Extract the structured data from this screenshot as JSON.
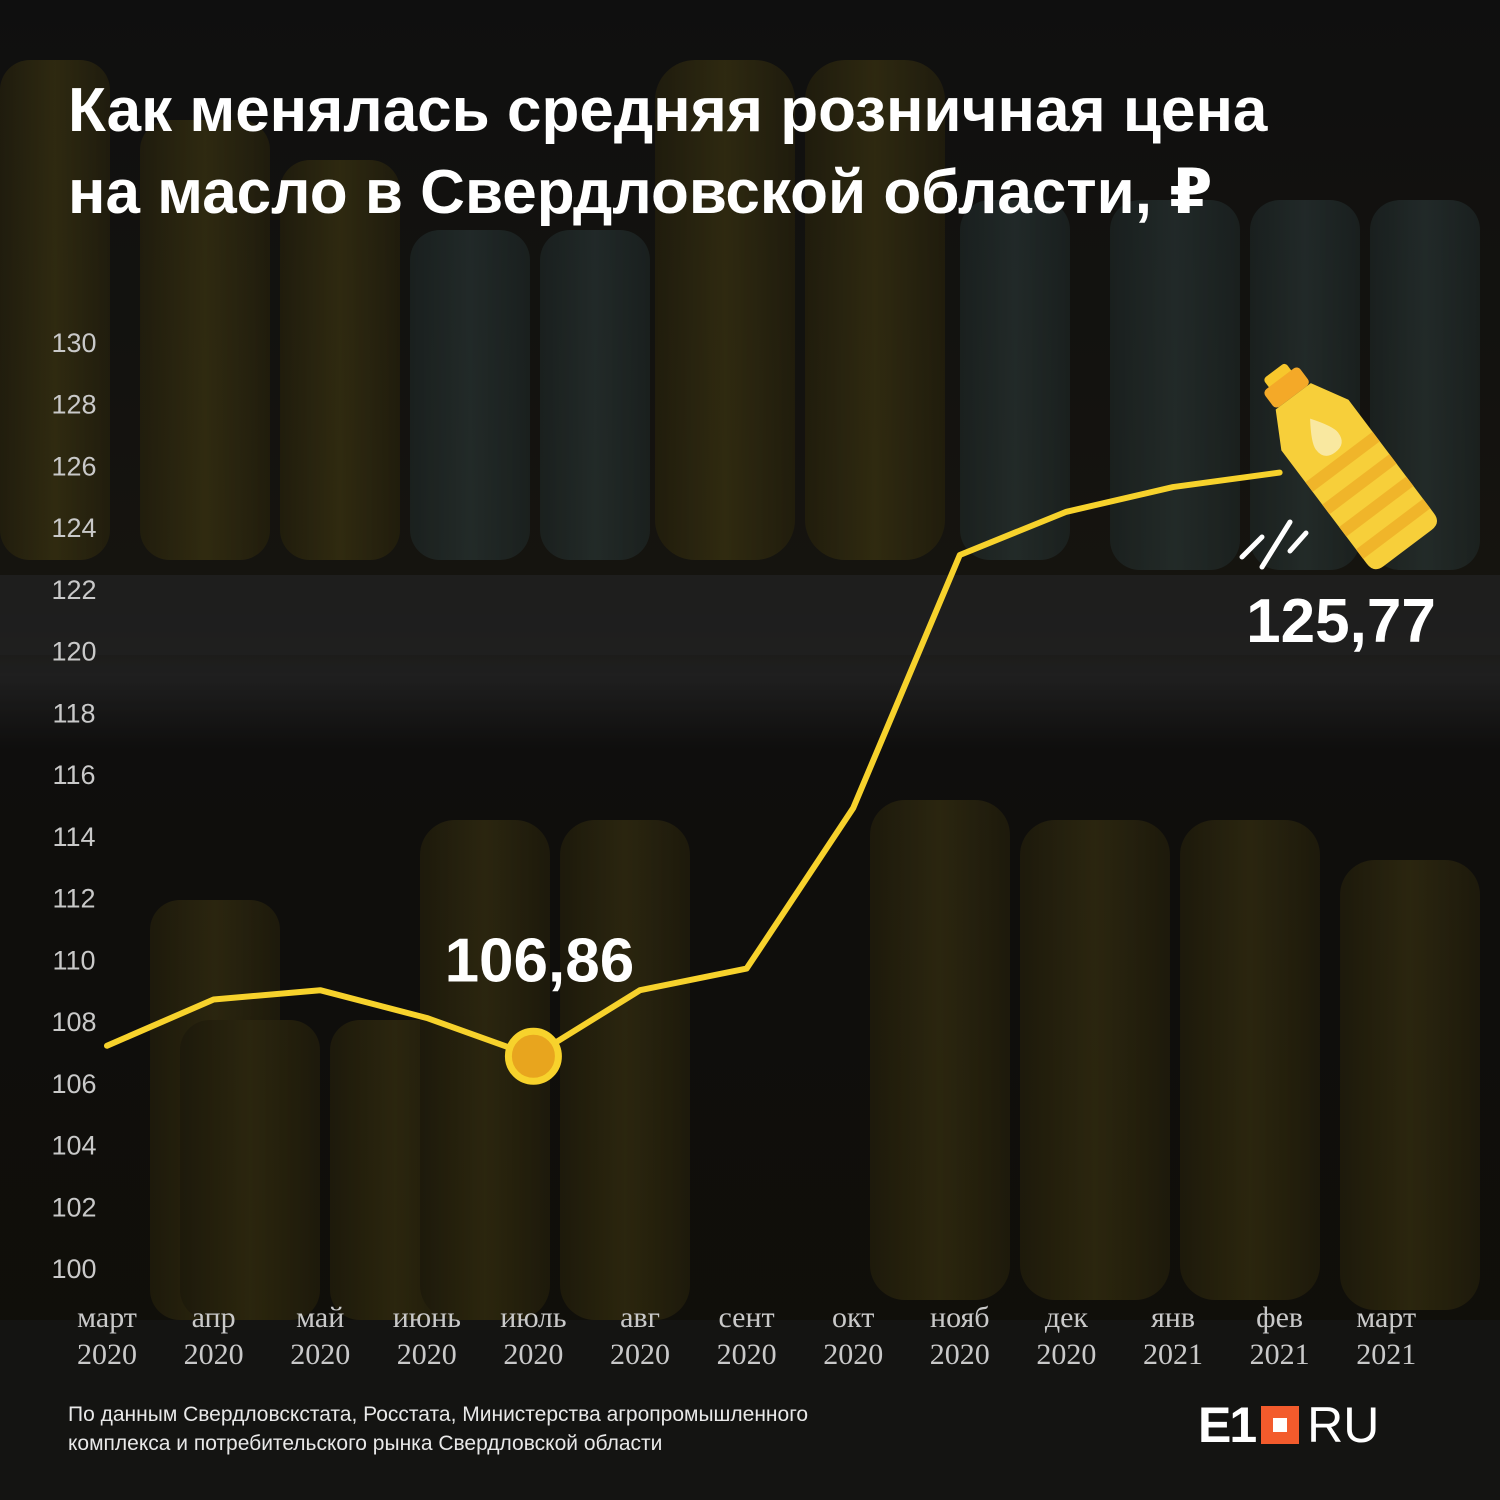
{
  "title_lines": [
    "Как менялась средняя розничная цена",
    "на масло в Свердловской области, ₽"
  ],
  "chart_data": {
    "type": "line",
    "ylim": [
      100,
      130
    ],
    "yticks": [
      100,
      102,
      104,
      106,
      108,
      110,
      112,
      114,
      116,
      118,
      120,
      122,
      124,
      126,
      128,
      130
    ],
    "categories": [
      [
        "март",
        "2020"
      ],
      [
        "апр",
        "2020"
      ],
      [
        "май",
        "2020"
      ],
      [
        "июнь",
        "2020"
      ],
      [
        "июль",
        "2020"
      ],
      [
        "авг",
        "2020"
      ],
      [
        "сент",
        "2020"
      ],
      [
        "окт",
        "2020"
      ],
      [
        "нояб",
        "2020"
      ],
      [
        "дек",
        "2020"
      ],
      [
        "янв",
        "2021"
      ],
      [
        "фев",
        "2021"
      ],
      [
        "март",
        "2021"
      ]
    ],
    "series": [
      {
        "values": [
          107.2,
          108.7,
          109.0,
          108.1,
          106.86,
          109.0,
          109.7,
          114.9,
          123.1,
          124.5,
          125.3,
          125.77,
          null
        ]
      }
    ],
    "annotations": [
      {
        "index": 4,
        "label": "106,86",
        "marker": true
      },
      {
        "index": 11,
        "label": "125,77",
        "marker": false
      }
    ],
    "grid": false,
    "legend": "none",
    "line_color": "#f7d22c",
    "marker_color": "#e8a51e"
  },
  "source_lines": [
    "По данным Свердловскстата, Росстата, Министерства агропромышленного",
    "комплекса и потребительского рынка Свердловской области"
  ],
  "logo": {
    "main": "E1",
    "suffix": "RU",
    "accent_color": "#f35b2c"
  },
  "icons": {
    "bottle": "oil-bottle-icon",
    "motion": "motion-lines-icon"
  }
}
